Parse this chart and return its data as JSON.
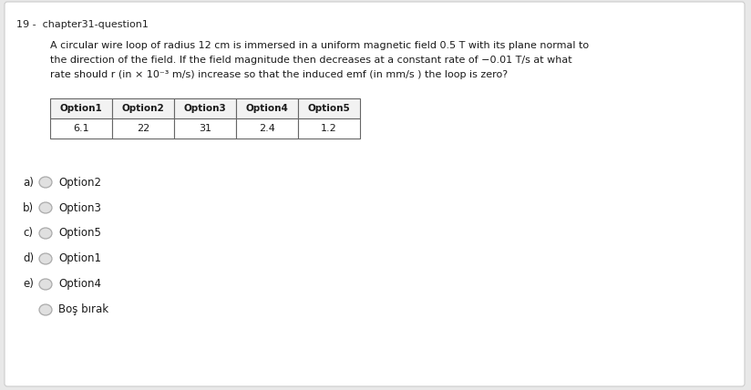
{
  "title": "19 -  chapter31-question1",
  "question_lines": [
    "A circular wire loop of radius 12 cm is immersed in a uniform magnetic field 0.5 T with its plane normal to",
    "the direction of the field. If the field magnitude then decreases at a constant rate of −0.01 T/s at what",
    "rate should r (in × 10⁻³ m/s) increase so that the induced emf (in mm/s ) the loop is zero?"
  ],
  "table_headers": [
    "Option1",
    "Option2",
    "Option3",
    "Option4",
    "Option5"
  ],
  "table_values": [
    "6.1",
    "22",
    "31",
    "2.4",
    "1.2"
  ],
  "options": [
    {
      "label": "a)",
      "text": "Option2"
    },
    {
      "label": "b)",
      "text": "Option3"
    },
    {
      "label": "c)",
      "text": "Option5"
    },
    {
      "label": "d)",
      "text": "Option1"
    },
    {
      "label": "e)",
      "text": "Option4"
    }
  ],
  "last_option": "Boş bırak",
  "bg_color": "#e8e8e8",
  "box_color": "#ffffff",
  "text_color": "#1a1a1a",
  "title_color": "#222222",
  "table_header_bg": "#f2f2f2",
  "table_border_color": "#666666",
  "radio_edge_color": "#aaaaaa",
  "radio_face_color": "#e0e0e0"
}
